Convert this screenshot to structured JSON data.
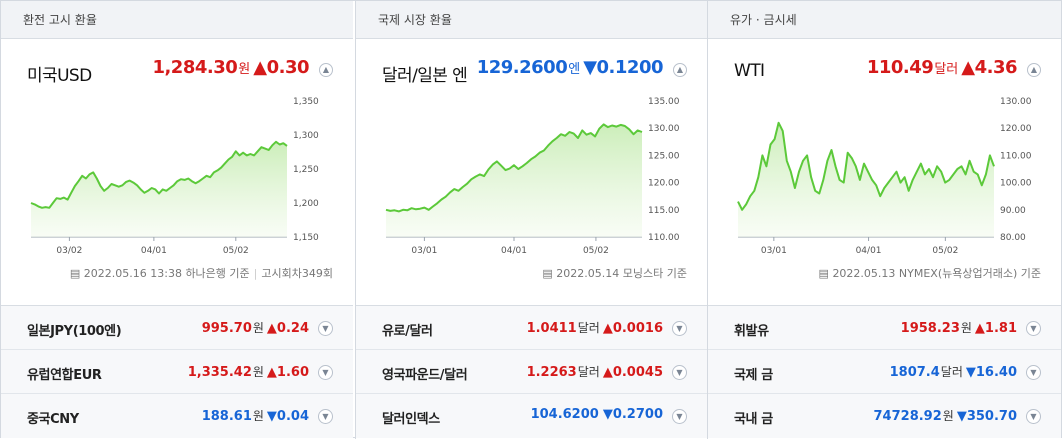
{
  "panels": [
    {
      "tab": "환전 고시 환율",
      "name": "미국USD",
      "value": "1,284.30",
      "unit": "원",
      "change": "▲0.30",
      "direction": "up",
      "footer": "2022.05.16 13:38 하나은행 기준",
      "footer_extra": "고시회차349회",
      "rows": [
        {
          "name": "일본JPY(100엔)",
          "value": "995.70",
          "unit": "원",
          "change": "▲0.24",
          "direction": "up"
        },
        {
          "name": "유럽연합EUR",
          "value": "1,335.42",
          "unit": "원",
          "change": "▲1.60",
          "direction": "up"
        },
        {
          "name": "중국CNY",
          "value": "188.61",
          "unit": "원",
          "change": "▼0.04",
          "direction": "down"
        }
      ]
    },
    {
      "tab": "국제 시장 환율",
      "name": "달러/일본 엔",
      "value": "129.2600",
      "unit": "엔",
      "change": "▼0.1200",
      "direction": "down",
      "footer": "2022.05.14 모닝스타 기준",
      "footer_extra": "",
      "rows": [
        {
          "name": "유로/달러",
          "value": "1.0411",
          "unit": "달러",
          "change": "▲0.0016",
          "direction": "up"
        },
        {
          "name": "영국파운드/달러",
          "value": "1.2263",
          "unit": "달러",
          "change": "▲0.0045",
          "direction": "up"
        },
        {
          "name": "달러인덱스",
          "value": "104.6200",
          "unit": "",
          "change": "▼0.2700",
          "direction": "down"
        }
      ]
    },
    {
      "tab": "유가 · 금시세",
      "name": "WTI",
      "value": "110.49",
      "unit": "달러",
      "change": "▲4.36",
      "direction": "up",
      "footer": "2022.05.13 NYMEX(뉴욕상업거래소) 기준",
      "footer_extra": "",
      "rows": [
        {
          "name": "휘발유",
          "value": "1958.23",
          "unit": "원",
          "change": "▲1.81",
          "direction": "up"
        },
        {
          "name": "국제 금",
          "value": "1807.4",
          "unit": "달러",
          "change": "▼16.40",
          "direction": "down"
        },
        {
          "name": "국내 금",
          "value": "74728.92",
          "unit": "원",
          "change": "▼350.70",
          "direction": "down"
        }
      ]
    }
  ],
  "icons": {
    "toggle": "chevron-up-icon",
    "row_toggle": "chevron-down-icon",
    "doc": "document-icon"
  },
  "colors": {
    "up": "#d51a1a",
    "down": "#1765d6",
    "line": "#5cc93a",
    "fill": "#e6f7dc"
  },
  "chart_data": [
    {
      "type": "area",
      "x_ticks": [
        "03/02",
        "04/01",
        "05/02"
      ],
      "x_tick_pos": [
        0.15,
        0.48,
        0.8
      ],
      "y_ticks": [
        "1,350",
        "1,300",
        "1,250",
        "1,200",
        "1,150"
      ],
      "ylim": [
        1150,
        1350
      ],
      "values": [
        1200,
        1198,
        1195,
        1193,
        1194,
        1193,
        1200,
        1207,
        1206,
        1208,
        1205,
        1215,
        1225,
        1232,
        1240,
        1236,
        1242,
        1245,
        1236,
        1225,
        1218,
        1222,
        1228,
        1226,
        1224,
        1226,
        1231,
        1233,
        1230,
        1226,
        1220,
        1215,
        1218,
        1222,
        1220,
        1214,
        1220,
        1218,
        1222,
        1226,
        1232,
        1235,
        1234,
        1236,
        1232,
        1229,
        1232,
        1236,
        1240,
        1238,
        1245,
        1248,
        1252,
        1258,
        1264,
        1268,
        1276,
        1270,
        1274,
        1270,
        1272,
        1270,
        1276,
        1282,
        1280,
        1278,
        1285,
        1290,
        1286,
        1288,
        1284
      ]
    },
    {
      "type": "area",
      "x_ticks": [
        "03/01",
        "04/01",
        "05/02"
      ],
      "x_tick_pos": [
        0.15,
        0.5,
        0.82
      ],
      "y_ticks": [
        "135.00",
        "130.00",
        "125.00",
        "120.00",
        "115.00",
        "110.00"
      ],
      "ylim": [
        110,
        135
      ],
      "values": [
        115.0,
        114.8,
        114.9,
        114.7,
        115.0,
        114.9,
        115.3,
        115.1,
        115.2,
        115.4,
        115.0,
        115.6,
        116.2,
        116.9,
        117.4,
        118.2,
        118.8,
        118.5,
        119.2,
        119.8,
        120.6,
        121.1,
        121.5,
        121.2,
        122.4,
        123.3,
        123.9,
        123.1,
        122.3,
        122.6,
        123.2,
        122.5,
        123.0,
        123.6,
        124.3,
        124.8,
        125.5,
        125.9,
        126.8,
        127.6,
        128.2,
        128.9,
        128.6,
        129.3,
        129.0,
        128.2,
        129.6,
        128.8,
        129.1,
        128.5,
        129.9,
        130.7,
        130.2,
        130.5,
        130.3,
        130.6,
        130.4,
        129.8,
        128.9,
        129.6,
        129.3
      ]
    },
    {
      "type": "area",
      "x_ticks": [
        "03/01",
        "04/01",
        "05/02"
      ],
      "x_tick_pos": [
        0.14,
        0.51,
        0.81
      ],
      "y_ticks": [
        "130.00",
        "120.00",
        "110.00",
        "100.00",
        "90.00",
        "80.00"
      ],
      "ylim": [
        80,
        130
      ],
      "values": [
        93,
        90,
        92,
        95,
        97,
        102,
        110,
        106,
        114,
        116,
        122,
        119,
        108,
        104,
        98,
        104,
        108,
        110,
        102,
        97,
        96,
        101,
        108,
        112,
        106,
        101,
        100,
        111,
        109,
        106,
        101,
        107,
        104,
        101,
        99,
        95,
        98,
        100,
        102,
        104,
        100,
        102,
        97,
        101,
        104,
        107,
        103,
        105,
        102,
        106,
        104,
        100,
        101,
        103,
        105,
        106,
        103,
        108,
        104,
        103,
        99,
        103,
        110,
        106
      ]
    }
  ]
}
